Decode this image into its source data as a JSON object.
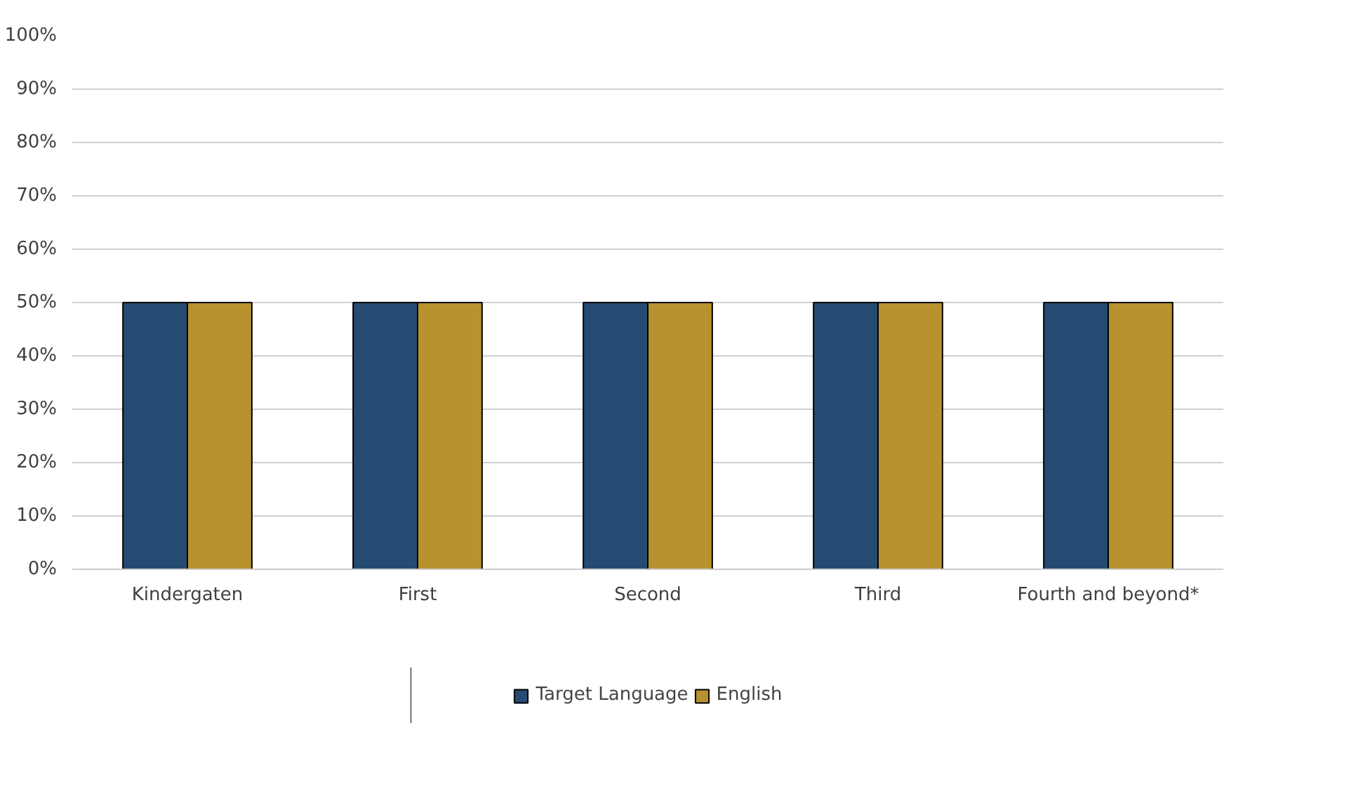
{
  "chart_data": {
    "type": "bar",
    "categories": [
      "Kindergaten",
      "First",
      "Second",
      "Third",
      "Fourth and beyond*"
    ],
    "series": [
      {
        "name": "Target Language",
        "color": "#264b73",
        "values": [
          50,
          50,
          50,
          50,
          50
        ]
      },
      {
        "name": "English",
        "color": "#b8922e",
        "values": [
          50,
          50,
          50,
          50,
          50
        ]
      }
    ],
    "ylim": [
      0,
      100
    ],
    "yticks": [
      {
        "value": 0,
        "label": "0%"
      },
      {
        "value": 10,
        "label": "10%"
      },
      {
        "value": 20,
        "label": "20%"
      },
      {
        "value": 30,
        "label": "30%"
      },
      {
        "value": 40,
        "label": "40%"
      },
      {
        "value": 50,
        "label": "50%"
      },
      {
        "value": 60,
        "label": "60%"
      },
      {
        "value": 70,
        "label": "70%"
      },
      {
        "value": 80,
        "label": "80%"
      },
      {
        "value": 90,
        "label": "90%"
      },
      {
        "value": 100,
        "label": "100%"
      }
    ],
    "grid": "y",
    "legend": "bottom"
  }
}
